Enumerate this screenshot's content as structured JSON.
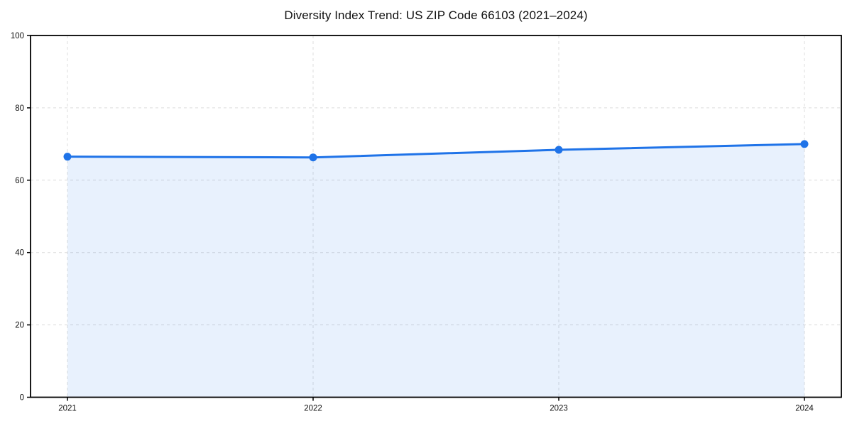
{
  "chart_data": {
    "type": "area",
    "title": "Diversity Index Trend: US ZIP Code 66103 (2021–2024)",
    "categories": [
      "2021",
      "2022",
      "2023",
      "2024"
    ],
    "series": [
      {
        "name": "Diversity Index",
        "values": [
          66.5,
          66.3,
          68.4,
          70.0
        ]
      }
    ],
    "xlabel": "",
    "ylabel": "",
    "ylim": [
      0,
      100
    ],
    "y_ticks": [
      0,
      20,
      40,
      60,
      80,
      100
    ],
    "grid": true,
    "grid_style": "dashed",
    "legend_position": "none",
    "colors": {
      "line": "#1f73e8",
      "marker": "#1f73e8",
      "fill": "#1f73e8",
      "fill_opacity": 0.1,
      "gridline": "#dcdcdc",
      "spine": "#000000",
      "text": "#111111",
      "background": "#ffffff"
    }
  }
}
